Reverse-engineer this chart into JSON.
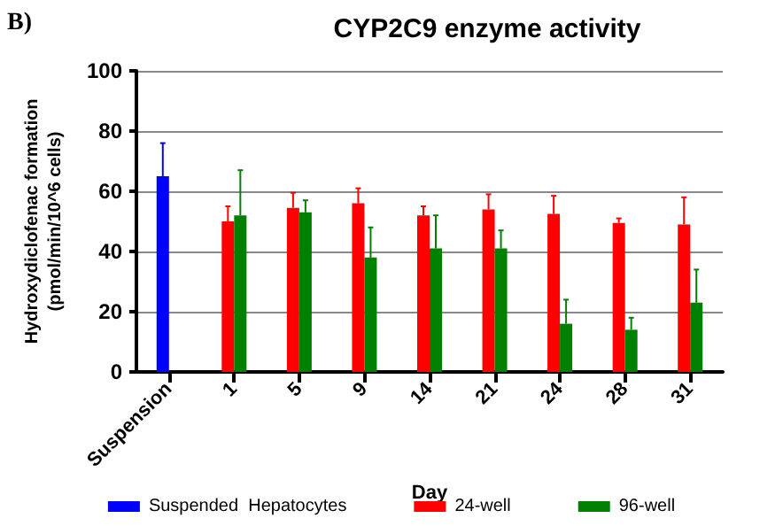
{
  "chart_data": {
    "type": "bar",
    "title": "CYP2C9 enzyme activity",
    "xlabel": "Day",
    "ylabel": "Hydroxydiclofenac formation\n(pmol/min/10^6 cells)",
    "annotations": [
      "B)"
    ],
    "categories": [
      "Suspension",
      "1",
      "5",
      "9",
      "14",
      "21",
      "24",
      "28",
      "31"
    ],
    "series": [
      {
        "name": "Suspended  Hepatocytes",
        "color": "#0000ff",
        "values": [
          65,
          null,
          null,
          null,
          null,
          null,
          null,
          null,
          null
        ],
        "errors": [
          [
            65,
            76
          ],
          null,
          null,
          null,
          null,
          null,
          null,
          null,
          null
        ]
      },
      {
        "name": "24-well",
        "color": "#ff0000",
        "values": [
          null,
          50,
          54.5,
          56,
          52,
          54,
          52.5,
          49.5,
          49
        ],
        "errors": [
          null,
          [
            50,
            55
          ],
          [
            54.5,
            59.5
          ],
          [
            56,
            61
          ],
          [
            52,
            55
          ],
          [
            54,
            59
          ],
          [
            52.5,
            58.5
          ],
          [
            49.5,
            51
          ],
          [
            49,
            58
          ]
        ]
      },
      {
        "name": "96-well",
        "color": "#008000",
        "values": [
          null,
          52,
          53,
          38,
          41,
          41,
          16,
          14,
          23
        ],
        "errors": [
          null,
          [
            52,
            67
          ],
          [
            53,
            57
          ],
          [
            38,
            48
          ],
          [
            41,
            52
          ],
          [
            41,
            47
          ],
          [
            16,
            24
          ],
          [
            14,
            18
          ],
          [
            23,
            34
          ]
        ]
      }
    ],
    "ylim": [
      0,
      100
    ],
    "yticks": [
      0,
      20,
      40,
      60,
      80,
      100
    ],
    "grid": "y",
    "legend": "bottom"
  }
}
